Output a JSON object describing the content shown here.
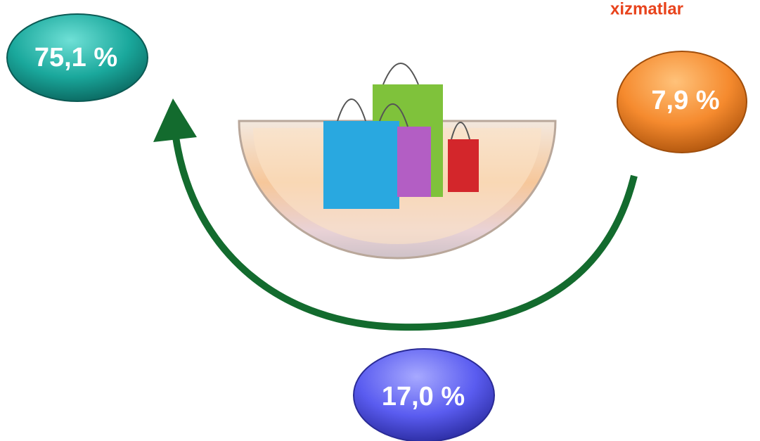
{
  "heading": "xizmatlar",
  "nodes": [
    {
      "label": "75,1 %"
    },
    {
      "label": "7,9 %"
    },
    {
      "label": "17,0 %"
    }
  ]
}
